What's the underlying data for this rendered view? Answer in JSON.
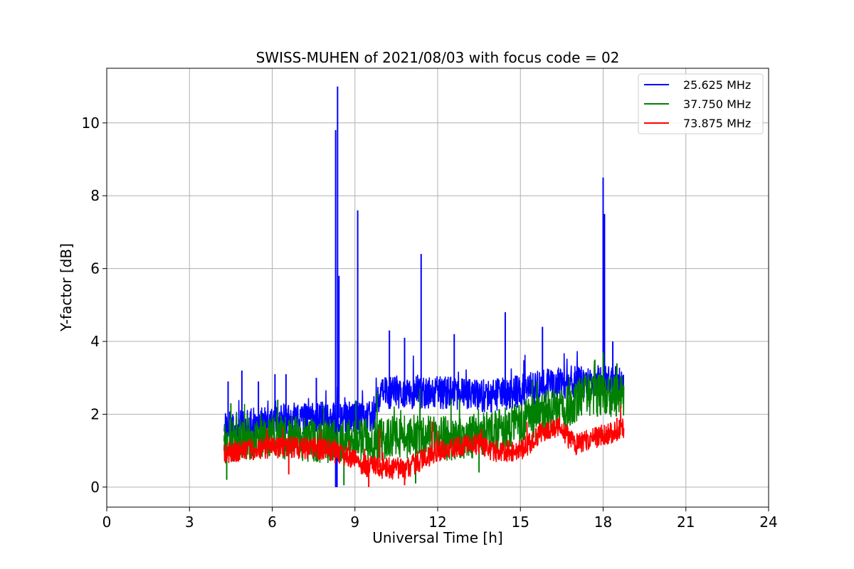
{
  "chart_data": {
    "type": "line",
    "title": "SWISS-MUHEN of 2021/08/03 with focus code = 02",
    "xlabel": "Universal Time [h]",
    "ylabel": "Y-factor [dB]",
    "xlim": [
      0,
      24
    ],
    "ylim": [
      -0.55,
      11.5
    ],
    "xticks": [
      0,
      3,
      6,
      9,
      12,
      15,
      18,
      21,
      24
    ],
    "yticks": [
      0,
      2,
      4,
      6,
      8,
      10
    ],
    "grid": true,
    "legend_position": "top-right",
    "series": [
      {
        "name": "25.625 MHz",
        "color": "#0000ff",
        "baseline": [
          [
            4.25,
            1.6
          ],
          [
            6,
            1.8
          ],
          [
            8,
            1.9
          ],
          [
            9.6,
            1.9
          ],
          [
            10,
            2.6
          ],
          [
            12,
            2.6
          ],
          [
            14,
            2.5
          ],
          [
            16,
            2.8
          ],
          [
            17.1,
            2.9
          ],
          [
            18.75,
            2.9
          ]
        ],
        "noise": 0.45,
        "spikes": [
          [
            4.4,
            2.9
          ],
          [
            4.9,
            3.2
          ],
          [
            5.5,
            2.9
          ],
          [
            6.1,
            3.1
          ],
          [
            6.5,
            3.1
          ],
          [
            7.6,
            3.0
          ],
          [
            8.3,
            9.8
          ],
          [
            8.37,
            11.0
          ],
          [
            8.42,
            5.8
          ],
          [
            9.1,
            7.6
          ],
          [
            10.25,
            4.3
          ],
          [
            10.8,
            4.1
          ],
          [
            11.4,
            6.4
          ],
          [
            12.6,
            4.2
          ],
          [
            14.45,
            4.8
          ],
          [
            15.8,
            4.4
          ],
          [
            18.0,
            8.5
          ],
          [
            18.05,
            7.5
          ],
          [
            18.35,
            4.0
          ]
        ],
        "dips": [
          [
            8.3,
            0.0
          ],
          [
            8.35,
            0.0
          ]
        ]
      },
      {
        "name": "37.750 MHz",
        "color": "#008000",
        "baseline": [
          [
            4.25,
            1.25
          ],
          [
            6,
            1.4
          ],
          [
            8,
            1.25
          ],
          [
            9.5,
            1.3
          ],
          [
            11,
            1.4
          ],
          [
            13,
            1.3
          ],
          [
            14.5,
            1.6
          ],
          [
            16,
            2.1
          ],
          [
            16.9,
            2.2
          ],
          [
            17.1,
            2.5
          ],
          [
            18.75,
            2.5
          ]
        ],
        "noise": 0.6,
        "spikes": [
          [
            4.5,
            2.3
          ],
          [
            6.2,
            2.4
          ],
          [
            9.8,
            2.6
          ],
          [
            15.6,
            2.9
          ],
          [
            17.7,
            3.5
          ],
          [
            18.0,
            3.7
          ],
          [
            18.5,
            3.4
          ]
        ],
        "dips": [
          [
            4.35,
            0.2
          ],
          [
            8.6,
            0.05
          ],
          [
            11.2,
            0.1
          ],
          [
            13.5,
            0.4
          ]
        ]
      },
      {
        "name": "73.875 MHz",
        "color": "#ff0000",
        "baseline": [
          [
            4.25,
            0.95
          ],
          [
            6,
            1.1
          ],
          [
            8,
            1.05
          ],
          [
            9.5,
            0.55
          ],
          [
            10.8,
            0.5
          ],
          [
            12,
            1.0
          ],
          [
            13.5,
            1.2
          ],
          [
            14,
            1.0
          ],
          [
            15,
            1.0
          ],
          [
            15.8,
            1.5
          ],
          [
            16.5,
            1.6
          ],
          [
            16.95,
            1.15
          ],
          [
            17.5,
            1.3
          ],
          [
            18.75,
            1.6
          ]
        ],
        "noise": 0.3,
        "spikes": [
          [
            5.8,
            1.6
          ],
          [
            9.9,
            1.6
          ],
          [
            11.8,
            1.8
          ],
          [
            13.6,
            1.6
          ],
          [
            16.4,
            1.85
          ],
          [
            18.5,
            1.9
          ]
        ],
        "dips": [
          [
            9.5,
            0.0
          ],
          [
            10.8,
            0.05
          ],
          [
            6.6,
            0.35
          ]
        ]
      }
    ]
  }
}
